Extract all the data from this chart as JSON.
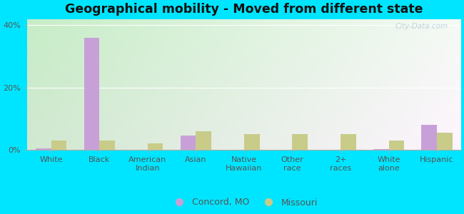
{
  "title": "Geographical mobility - Moved from different state",
  "categories": [
    "White",
    "Black",
    "American\nIndian",
    "Asian",
    "Native\nHawaiian",
    "Other\nrace",
    "2+\nraces",
    "White\nalone",
    "Hispanic"
  ],
  "concord_values": [
    0.4,
    36.0,
    0.0,
    4.5,
    0.0,
    0.0,
    0.0,
    0.3,
    8.0
  ],
  "missouri_values": [
    3.0,
    3.0,
    2.0,
    6.0,
    5.0,
    5.0,
    5.0,
    3.0,
    5.5
  ],
  "concord_color": "#c8a0d8",
  "missouri_color": "#c8cc88",
  "background_color_fig": "#00e5ff",
  "bg_top_left": "#c8eec8",
  "bg_bottom_right": "#f0f8f0",
  "grid_color": "#d8e8d8",
  "ylim": [
    0,
    42
  ],
  "yticks": [
    0,
    20,
    40
  ],
  "ytick_labels": [
    "0%",
    "20%",
    "40%"
  ],
  "bar_width": 0.32,
  "legend_labels": [
    "Concord, MO",
    "Missouri"
  ],
  "title_fontsize": 12.5,
  "tick_fontsize": 8,
  "legend_fontsize": 9
}
